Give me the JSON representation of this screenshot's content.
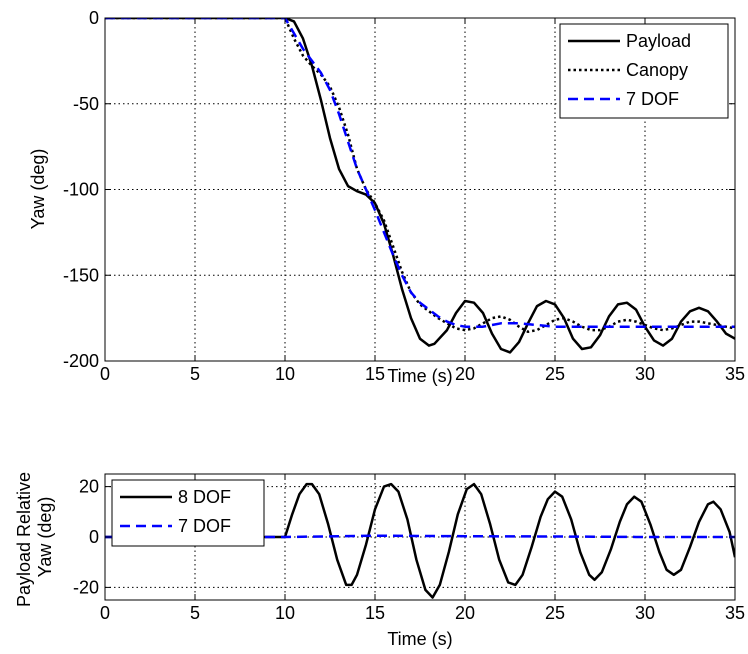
{
  "chart_data": [
    {
      "type": "line",
      "xlabel": "Time (s)",
      "ylabel": "Yaw (deg)",
      "xlim": [
        0,
        35
      ],
      "ylim": [
        -200,
        0
      ],
      "xticks": [
        0,
        5,
        10,
        15,
        20,
        25,
        30,
        35
      ],
      "yticks": [
        0,
        -50,
        -100,
        -150,
        -200
      ],
      "grid": true,
      "legend_position": "top-right",
      "series": [
        {
          "name": "Payload",
          "color": "#000000",
          "style": "solid",
          "x": [
            0,
            10,
            10.5,
            11,
            11.5,
            12,
            12.5,
            13,
            13.5,
            14,
            14.5,
            15,
            15.5,
            16,
            16.5,
            17,
            17.5,
            18,
            18.3,
            19,
            19.5,
            20,
            20.5,
            21,
            21.5,
            22,
            22.5,
            23,
            23.5,
            24,
            24.5,
            25,
            25.5,
            26,
            26.5,
            27,
            27.5,
            28,
            28.5,
            29,
            29.5,
            30,
            30.5,
            31,
            31.5,
            32,
            32.5,
            33,
            33.5,
            34,
            34.5,
            35
          ],
          "y": [
            0,
            0,
            -2,
            -12,
            -28,
            -48,
            -70,
            -88,
            -98,
            -101,
            -103,
            -108,
            -120,
            -138,
            -158,
            -175,
            -187,
            -191,
            -190,
            -182,
            -172,
            -165,
            -166,
            -172,
            -184,
            -193,
            -195,
            -189,
            -178,
            -168,
            -165,
            -167,
            -175,
            -187,
            -193,
            -192,
            -185,
            -174,
            -167,
            -166,
            -170,
            -180,
            -188,
            -191,
            -187,
            -177,
            -171,
            -169,
            -171,
            -177,
            -184,
            -187
          ]
        },
        {
          "name": "Canopy",
          "color": "#000000",
          "style": "dotted",
          "x": [
            0,
            10,
            10.5,
            11,
            11.5,
            12,
            12.5,
            13,
            13.5,
            14,
            14.5,
            15,
            15.5,
            16,
            16.5,
            17,
            17.5,
            18,
            18.5,
            19,
            19.5,
            20,
            20.5,
            21,
            21.5,
            22,
            22.5,
            23,
            23.5,
            24,
            24.5,
            25,
            25.5,
            26,
            26.5,
            27,
            27.5,
            28,
            28.5,
            29,
            29.5,
            30,
            30.5,
            31,
            31.5,
            32,
            32.5,
            33,
            33.5,
            34,
            34.5,
            35
          ],
          "y": [
            0,
            0,
            -12,
            -22,
            -28,
            -33,
            -40,
            -52,
            -68,
            -88,
            -100,
            -108,
            -118,
            -133,
            -148,
            -160,
            -167,
            -171,
            -175,
            -178,
            -181,
            -182,
            -181,
            -178,
            -175,
            -174,
            -176,
            -180,
            -183,
            -182,
            -179,
            -176,
            -175,
            -177,
            -180,
            -182,
            -182,
            -180,
            -177,
            -176,
            -177,
            -179,
            -181,
            -182,
            -181,
            -179,
            -177,
            -177,
            -178,
            -179,
            -180,
            -181
          ]
        },
        {
          "name": "7 DOF",
          "color": "#0000ff",
          "style": "dashed",
          "x": [
            0,
            10,
            10.5,
            11,
            11.5,
            12,
            12.5,
            13,
            13.5,
            14,
            14.5,
            15,
            15.5,
            16,
            16.5,
            17,
            17.5,
            18,
            18.5,
            19,
            19.5,
            20,
            20.5,
            21,
            21.5,
            22,
            23,
            24,
            25,
            26,
            27,
            28,
            29,
            30,
            31,
            32,
            33,
            34,
            35
          ],
          "y": [
            0,
            0,
            -9,
            -18,
            -25,
            -32,
            -42,
            -56,
            -72,
            -88,
            -100,
            -112,
            -125,
            -138,
            -150,
            -160,
            -166,
            -170,
            -174,
            -177,
            -179,
            -180,
            -180,
            -180,
            -179,
            -178,
            -178,
            -179,
            -180,
            -180,
            -180,
            -180,
            -180,
            -180,
            -180,
            -180,
            -180,
            -180,
            -180
          ]
        }
      ]
    },
    {
      "type": "line",
      "xlabel": "Time (s)",
      "ylabel": "Payload Relative\nYaw (deg)",
      "xlim": [
        0,
        35
      ],
      "ylim": [
        -25,
        25
      ],
      "xticks": [
        0,
        5,
        10,
        15,
        20,
        25,
        30,
        35
      ],
      "yticks": [
        20,
        0,
        -20
      ],
      "grid": true,
      "legend_position": "top-left",
      "series": [
        {
          "name": "8 DOF",
          "color": "#000000",
          "style": "solid",
          "x": [
            0,
            10,
            10.4,
            10.8,
            11.2,
            11.5,
            11.9,
            12.4,
            12.9,
            13.4,
            13.7,
            14.0,
            14.5,
            15.0,
            15.5,
            15.9,
            16.3,
            16.8,
            17.3,
            17.8,
            18.2,
            18.6,
            19.1,
            19.6,
            20.1,
            20.5,
            20.9,
            21.4,
            21.9,
            22.4,
            22.8,
            23.2,
            23.7,
            24.2,
            24.6,
            25.0,
            25.4,
            25.9,
            26.4,
            26.9,
            27.2,
            27.6,
            28.1,
            28.6,
            29.0,
            29.4,
            29.8,
            30.3,
            30.8,
            31.2,
            31.6,
            32.0,
            32.5,
            33.0,
            33.5,
            33.8,
            34.2,
            34.7,
            35.0
          ],
          "y": [
            0,
            0,
            9,
            17,
            21,
            21,
            17,
            5,
            -9,
            -19,
            -19,
            -15,
            -3,
            11,
            20,
            21,
            18,
            7,
            -9,
            -21,
            -24,
            -19,
            -6,
            9,
            19,
            21,
            17,
            5,
            -9,
            -18,
            -19,
            -15,
            -4,
            8,
            15,
            18,
            16,
            7,
            -6,
            -15,
            -17,
            -14,
            -5,
            6,
            13,
            16,
            14,
            5,
            -6,
            -13,
            -15,
            -13,
            -4,
            6,
            13,
            14,
            11,
            2,
            -8
          ]
        },
        {
          "name": "7 DOF",
          "color": "#0000ff",
          "style": "dashed",
          "x": [
            0,
            10,
            15,
            20,
            25,
            30,
            35
          ],
          "y": [
            0,
            0,
            0.5,
            0.3,
            0.2,
            0,
            0
          ]
        }
      ]
    }
  ]
}
